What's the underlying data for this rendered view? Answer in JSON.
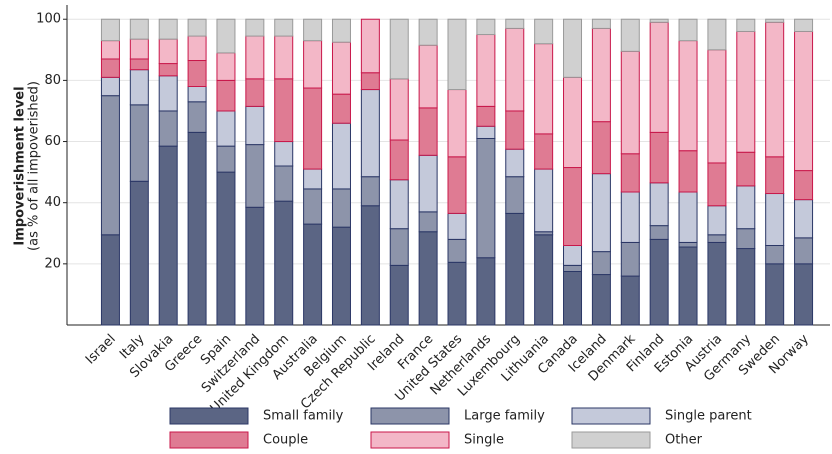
{
  "chart_data": {
    "type": "stacked_bar",
    "y_label": "Impoverishment level",
    "y_sublabel": "(as % of all impoverished)",
    "categories": [
      "Israel",
      "Italy",
      "Slovakia",
      "Greece",
      "Spain",
      "Switzerland",
      "United Kingdom",
      "Australia",
      "Belgium",
      "Czech Republic",
      "Ireland",
      "France",
      "United States",
      "Netherlands",
      "Luxembourg",
      "Lithuania",
      "Canada",
      "Iceland",
      "Denmark",
      "Finland",
      "Estonia",
      "Austria",
      "Germany",
      "Sweden",
      "Norway"
    ],
    "series": [
      {
        "name": "Small family",
        "color": "#5b6584",
        "stroke": "#2b3766",
        "values": [
          29.5,
          47,
          58.5,
          63,
          50,
          38.5,
          40.5,
          33,
          32,
          39,
          19.5,
          30.5,
          20.5,
          22,
          36.5,
          29.5,
          17.5,
          16.5,
          16,
          28,
          25.5,
          27,
          25,
          20,
          20
        ]
      },
      {
        "name": "Large family",
        "color": "#8d94aa",
        "stroke": "#2b3766",
        "values": [
          45.5,
          25,
          11.5,
          10,
          8.5,
          20.5,
          11.5,
          11.5,
          12.5,
          9.5,
          12,
          6.5,
          7.5,
          39,
          12,
          1,
          2,
          7.5,
          11,
          4.5,
          1.5,
          2.5,
          6.5,
          6,
          8.5
        ]
      },
      {
        "name": "Single parent",
        "color": "#c4c9da",
        "stroke": "#2b3766",
        "values": [
          6,
          11.5,
          11.5,
          5,
          11.5,
          12.5,
          8,
          6.5,
          21.5,
          28.5,
          16,
          18.5,
          8.5,
          4,
          9,
          20.5,
          6.5,
          25.5,
          16.5,
          14,
          16.5,
          9.5,
          14,
          17,
          12.5
        ]
      },
      {
        "name": "Couple",
        "color": "#df7b93",
        "stroke": "#c8174a",
        "values": [
          6,
          3.5,
          4,
          8.5,
          10,
          9,
          20.5,
          26.5,
          9.5,
          5.5,
          13,
          15.5,
          18.5,
          6.5,
          12.5,
          11.5,
          25.5,
          17,
          12.5,
          16.5,
          13.5,
          14,
          11,
          12,
          9.5
        ]
      },
      {
        "name": "Single",
        "color": "#f3b7c7",
        "stroke": "#c8174a",
        "values": [
          6,
          6.5,
          8,
          8,
          9,
          14,
          14,
          15.5,
          17,
          17.5,
          20,
          20.5,
          22,
          23.5,
          27,
          29.5,
          29.5,
          30.5,
          33.5,
          36,
          36,
          37,
          39.5,
          44,
          45.5
        ]
      },
      {
        "name": "Other",
        "color": "#d0d0d0",
        "stroke": "#9a9a9a",
        "values": [
          7,
          6.5,
          6.5,
          5.5,
          11,
          5.5,
          5.5,
          7,
          7.5,
          0,
          19.5,
          8.5,
          23,
          5,
          3,
          8,
          19,
          3,
          10.5,
          1,
          7,
          10,
          4,
          1,
          4
        ]
      }
    ],
    "ylim": [
      0,
      104
    ],
    "yticks": [
      20,
      40,
      60,
      80,
      100
    ],
    "grid": true,
    "legend": "bottom"
  }
}
